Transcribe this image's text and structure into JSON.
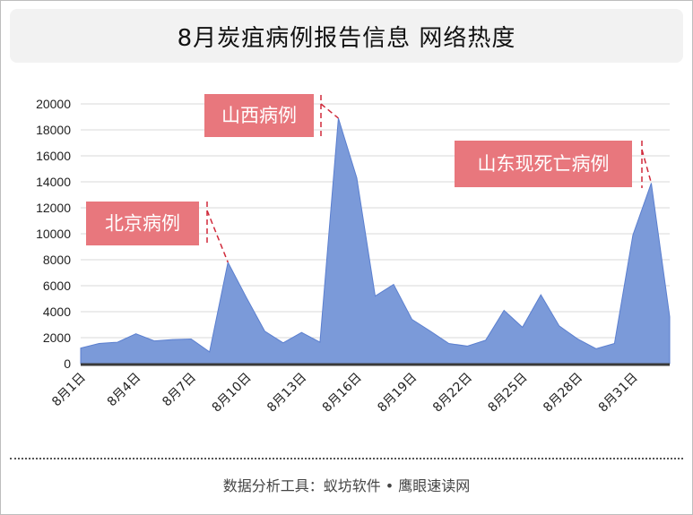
{
  "title": "8月炭疽病例报告信息 网络热度",
  "footer": "数据分析工具：蚁坊软件 • 鹰眼速读网",
  "colors": {
    "area_fill": "#7b9ad9",
    "area_stroke": "#5b7fcf",
    "baseline": "#3a3a3a",
    "gridline": "#d9d9d9",
    "annotation_box": "#e8777d",
    "annotation_text": "#ffffff",
    "leader_line": "#d0293a",
    "title_bg": "#f2f2f2"
  },
  "chart_data": {
    "type": "area",
    "title": "8月炭疽病例报告信息 网络热度",
    "xlabel": "",
    "ylabel": "",
    "ylim": [
      0,
      20000
    ],
    "yticks": [
      0,
      2000,
      4000,
      6000,
      8000,
      10000,
      12000,
      14000,
      16000,
      18000,
      20000
    ],
    "grid": true,
    "legend": "none",
    "x": [
      "8月1日",
      "8月2日",
      "8月3日",
      "8月4日",
      "8月5日",
      "8月6日",
      "8月7日",
      "8月8日",
      "8月9日",
      "8月10日",
      "8月11日",
      "8月12日",
      "8月13日",
      "8月14日",
      "8月15日",
      "8月16日",
      "8月17日",
      "8月18日",
      "8月19日",
      "8月20日",
      "8月21日",
      "8月22日",
      "8月23日",
      "8月24日",
      "8月25日",
      "8月26日",
      "8月27日",
      "8月28日",
      "8月29日",
      "8月30日",
      "8月31日",
      "9月1日",
      "9月2日"
    ],
    "x_tick_labels": [
      "8月1日",
      "8月4日",
      "8月7日",
      "8月10日",
      "8月13日",
      "8月16日",
      "8月19日",
      "8月22日",
      "8月25日",
      "8月28日",
      "8月31日"
    ],
    "series": [
      {
        "values": [
          1200,
          1550,
          1650,
          2300,
          1750,
          1850,
          1900,
          900,
          7800,
          5100,
          2500,
          1600,
          2400,
          1650,
          18900,
          14300,
          5200,
          6100,
          3400,
          2500,
          1550,
          1350,
          1800,
          4100,
          2800,
          5300,
          2900,
          1900,
          1150,
          1550,
          9900,
          13900,
          3600
        ]
      }
    ],
    "annotations": [
      {
        "text": "北京病例",
        "x": "8月9日",
        "y": 7800
      },
      {
        "text": "山西病例",
        "x": "8月15日",
        "y": 18900
      },
      {
        "text": "山东现死亡病例",
        "x": "9月1日",
        "y": 13900
      }
    ]
  }
}
